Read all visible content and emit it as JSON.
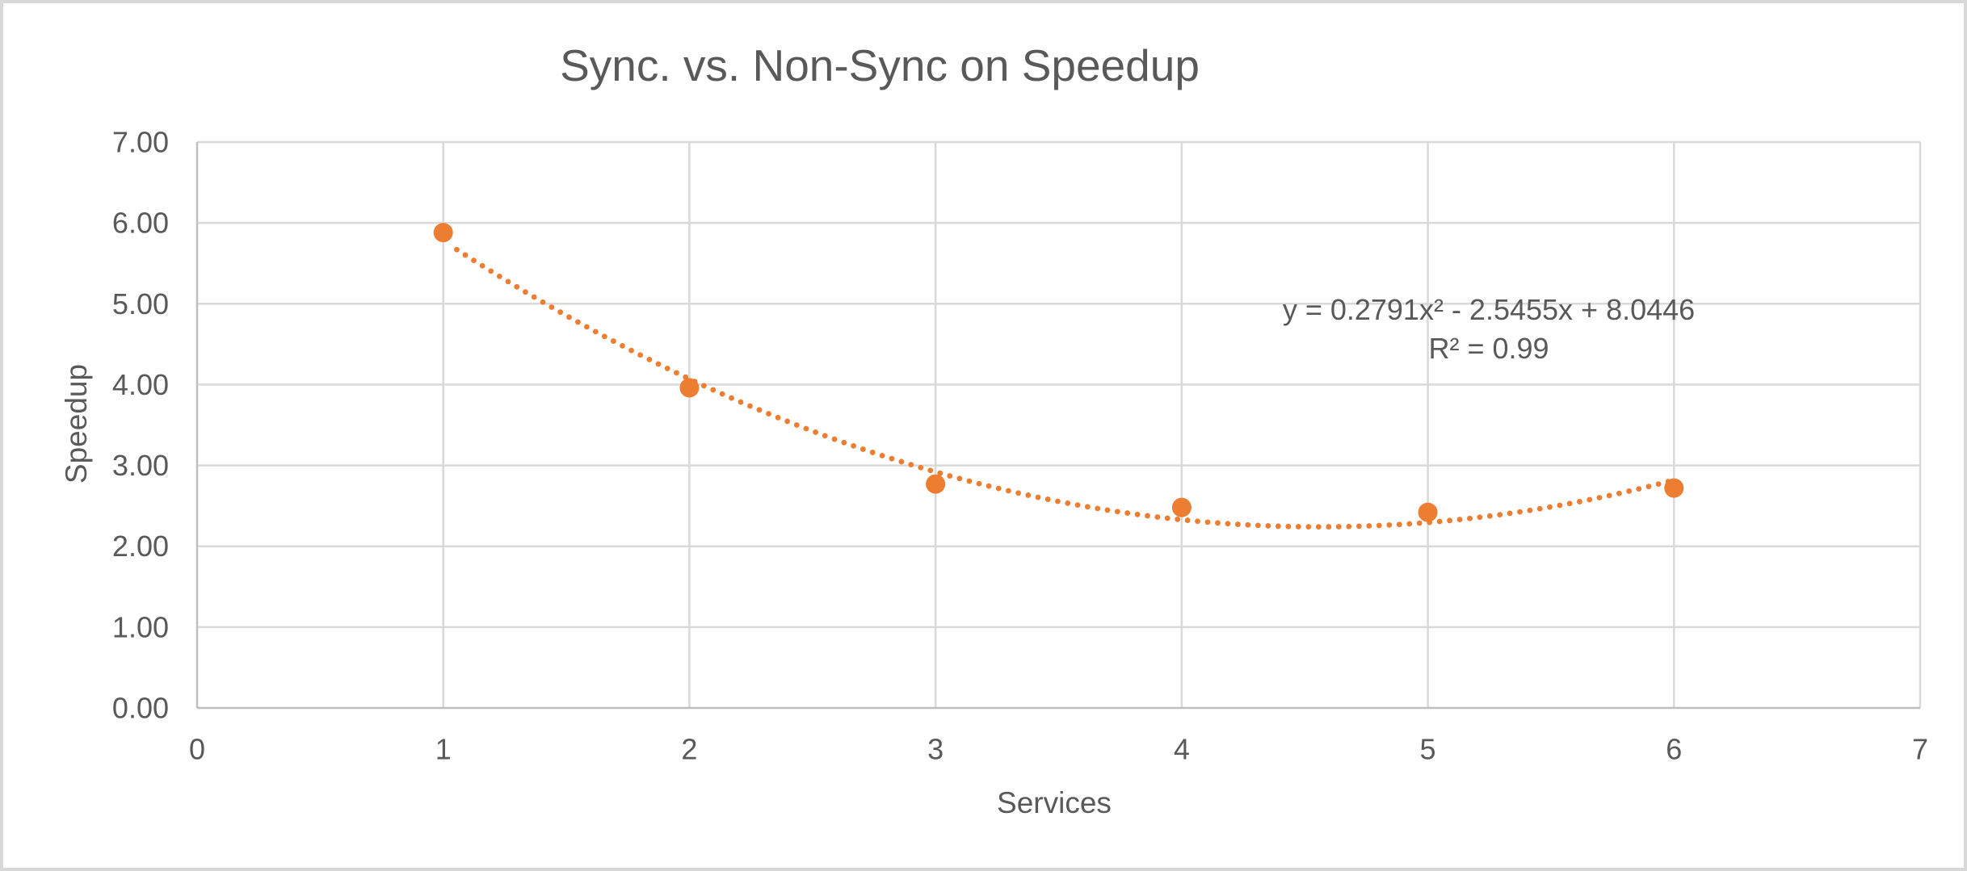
{
  "chart": {
    "title": "Sync. vs. Non-Sync on Speedup",
    "equation_line1": "y = 0.2791x² - 2.5455x + 8.0446",
    "equation_line2": "R² = 0.99",
    "ylabel": "Speedup",
    "xlabel": "Services"
  },
  "chart_data": {
    "type": "scatter",
    "title": "Sync. vs. Non-Sync on Speedup",
    "xlabel": "Services",
    "ylabel": "Speedup",
    "x": [
      1,
      2,
      3,
      4,
      5,
      6
    ],
    "values": [
      5.88,
      3.96,
      2.77,
      2.48,
      2.42,
      2.72
    ],
    "series_name": "Speedup",
    "xlim": [
      0,
      7
    ],
    "ylim": [
      0,
      7
    ],
    "x_tick_labels": [
      "0",
      "1",
      "2",
      "3",
      "4",
      "5",
      "6",
      "7"
    ],
    "y_tick_labels": [
      "0.00",
      "1.00",
      "2.00",
      "3.00",
      "4.00",
      "5.00",
      "6.00",
      "7.00"
    ],
    "grid": "on",
    "legend": "none",
    "trendline": {
      "type": "polynomial",
      "order": 2,
      "a": 0.2791,
      "b": -2.5455,
      "c": 8.0446,
      "r_squared": 0.99,
      "x_start": 1.0,
      "x_end": 6.0,
      "style": "dotted",
      "equation_text": "y = 0.2791x² - 2.5455x + 8.0446",
      "r_squared_text": "R² = 0.99"
    },
    "colors": {
      "marker": "#ED7D31",
      "trendline": "#ED7D31",
      "gridline": "#D9D9D9",
      "axis_line": "#BFBFBF",
      "text": "#595959",
      "background": "#FFFFFF",
      "frame_border": "#D8D8D8"
    }
  }
}
